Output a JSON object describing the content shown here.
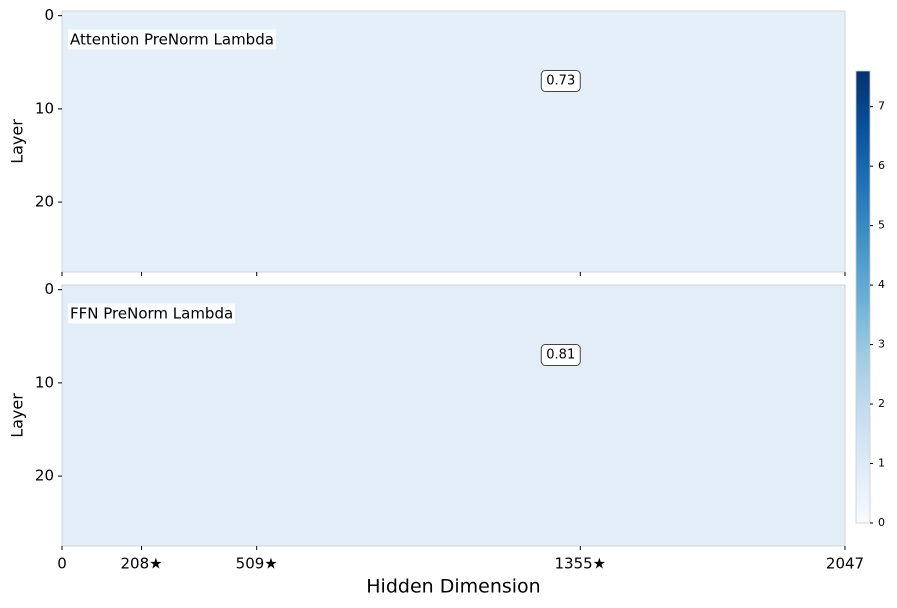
{
  "chart_data": [
    {
      "type": "heatmap",
      "label": "Attention PreNorm Lambda",
      "annotation": 0.73,
      "ylabel": "Layer",
      "xlim": [
        0,
        2047
      ],
      "xticks": [
        0,
        {
          "value": 208,
          "label": "208★"
        },
        {
          "value": 509,
          "label": "509★"
        },
        {
          "value": 1355,
          "label": "1355★"
        },
        2047
      ],
      "ylim": [
        27.5,
        -0.5
      ],
      "yticks": [
        0,
        10,
        20
      ]
    },
    {
      "type": "heatmap",
      "label": "FFN PreNorm Lambda",
      "annotation": 0.81,
      "ylabel": "Layer",
      "xlabel": "Hidden Dimension",
      "xlim": [
        0,
        2047
      ],
      "xticks": [
        0,
        {
          "value": 208,
          "label": "208★"
        },
        {
          "value": 509,
          "label": "509★"
        },
        {
          "value": 1355,
          "label": "1355★"
        },
        2047
      ],
      "ylim": [
        27.5,
        -0.5
      ],
      "yticks": [
        0,
        10,
        20
      ],
      "colorbar": {
        "lim": [
          0,
          7.6
        ],
        "ticks": [
          0,
          1,
          2,
          3,
          4,
          5,
          6,
          7
        ],
        "colormap": [
          "#f7fbff",
          "#deebf7",
          "#c6dbef",
          "#9ecae1",
          "#6baed6",
          "#4292c6",
          "#2171b5",
          "#08519c",
          "#08306b"
        ]
      }
    }
  ]
}
